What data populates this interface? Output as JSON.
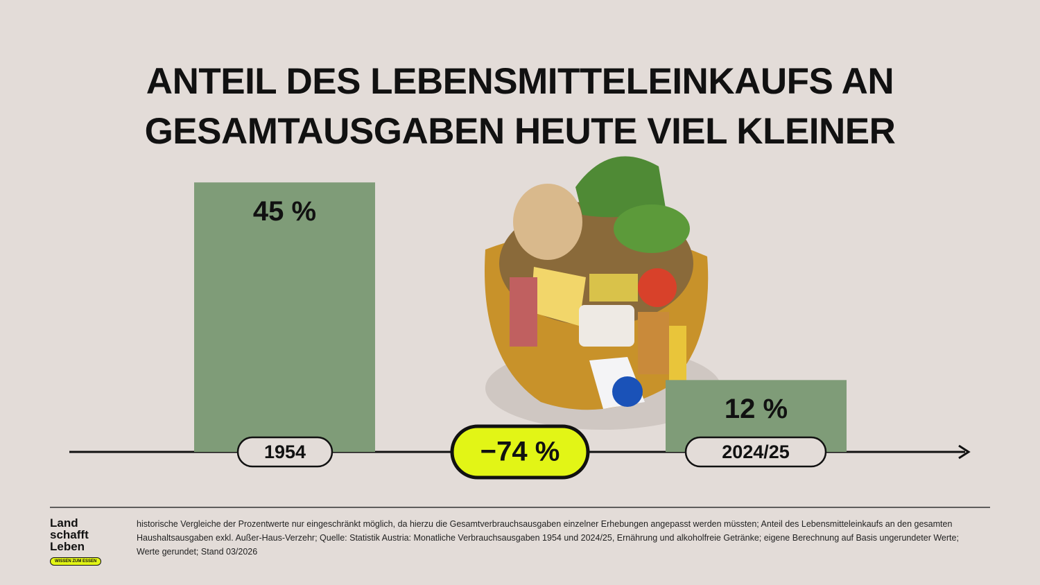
{
  "chart_data": {
    "type": "bar",
    "title": "ANTEIL DES LEBENSMITTELEINKAUFS AN GESAMTAUSGABEN HEUTE VIEL KLEINER",
    "categories": [
      "1954",
      "2024/25"
    ],
    "values": [
      45,
      12
    ],
    "value_labels": [
      "45 %",
      "12 %"
    ],
    "color": "#7f9c78",
    "annotation": "−74 %",
    "footnote": "historische Vergleiche der Prozentwerte nur eingeschränkt möglich, da hierzu die Gesamtverbrauchsausgaben einzelner Erhebungen angepasst werden müssten; Anteil des Lebensmitteleinkaufs an den gesamten Haushaltsausgaben exkl. Außer-Haus-Verzehr; Quelle: Statistik Austria: Monatliche Verbrauchsausgaben 1954 und 2024/25, Ernährung und alkoholfreie Getränke; eigene Berechnung auf Basis ungerundeter Werte; Werte gerundet; Stand 03/2026",
    "logo": {
      "line1": "Land",
      "line2": "schafft",
      "line3": "Leben",
      "tagline": "WISSEN ZUM ESSEN"
    }
  }
}
